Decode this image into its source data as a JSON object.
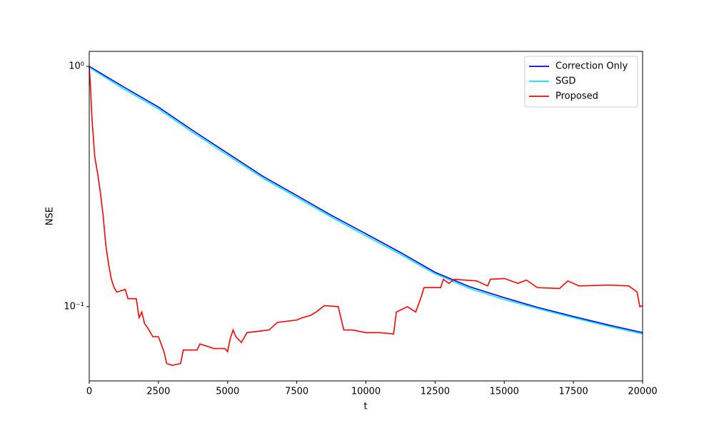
{
  "chart_data": {
    "type": "line",
    "x_label": "t",
    "y_label": "NSE",
    "xlim": [
      0,
      20000
    ],
    "xticks": [
      0,
      2500,
      5000,
      7500,
      10000,
      12500,
      15000,
      17500,
      20000
    ],
    "ylim": [
      0.0491,
      1.154
    ],
    "yscale": "log",
    "yticks": [
      {
        "value": 0.1,
        "label": "10⁻¹"
      },
      {
        "value": 1,
        "label": "10⁰"
      }
    ],
    "legend": "upper right",
    "series": [
      {
        "name": "Correction Only",
        "color": "#0000ff",
        "x": [
          0,
          1250,
          2500,
          3750,
          5000,
          6250,
          7500,
          8750,
          10000,
          11250,
          12500,
          13750,
          15000,
          16250,
          17500,
          18750,
          20000
        ],
        "values": [
          1.0,
          0.82,
          0.677,
          0.54,
          0.435,
          0.35,
          0.29,
          0.24,
          0.201,
          0.168,
          0.139,
          0.121,
          0.109,
          0.099,
          0.091,
          0.084,
          0.078
        ]
      },
      {
        "name": "SGD",
        "color": "#00e5ee",
        "x": [
          0,
          1250,
          2500,
          3750,
          5000,
          6250,
          7500,
          8750,
          10000,
          11250,
          12500,
          13750,
          15000,
          16250,
          17500,
          18750,
          20000
        ],
        "values": [
          0.99,
          0.805,
          0.665,
          0.53,
          0.427,
          0.344,
          0.285,
          0.236,
          0.197,
          0.165,
          0.137,
          0.119,
          0.107,
          0.098,
          0.09,
          0.083,
          0.077
        ]
      },
      {
        "name": "Proposed",
        "color": "#ff0000",
        "x": [
          0,
          50,
          100,
          200,
          300,
          400,
          500,
          600,
          700,
          800,
          900,
          1000,
          1300,
          1400,
          1700,
          1800,
          1900,
          2000,
          2100,
          2300,
          2500,
          2700,
          2800,
          3000,
          3300,
          3400,
          3900,
          4000,
          4500,
          4900,
          5000,
          5100,
          5200,
          5300,
          5500,
          5700,
          6500,
          6800,
          7500,
          7700,
          8000,
          8200,
          8500,
          9000,
          9200,
          9500,
          10000,
          10500,
          11000,
          11100,
          11500,
          11800,
          12000,
          12100,
          12700,
          12800,
          13000,
          13200,
          14000,
          14400,
          14500,
          15000,
          15500,
          15800,
          16200,
          17000,
          17300,
          17700,
          18800,
          19500,
          19800,
          19900,
          20000
        ],
        "values": [
          1.0,
          0.8,
          0.6,
          0.42,
          0.36,
          0.3,
          0.24,
          0.18,
          0.15,
          0.13,
          0.12,
          0.115,
          0.118,
          0.108,
          0.108,
          0.09,
          0.095,
          0.085,
          0.082,
          0.075,
          0.075,
          0.065,
          0.058,
          0.057,
          0.058,
          0.066,
          0.066,
          0.07,
          0.067,
          0.067,
          0.065,
          0.074,
          0.08,
          0.075,
          0.071,
          0.078,
          0.08,
          0.086,
          0.088,
          0.09,
          0.092,
          0.095,
          0.101,
          0.1,
          0.08,
          0.08,
          0.078,
          0.078,
          0.077,
          0.095,
          0.1,
          0.095,
          0.11,
          0.12,
          0.12,
          0.13,
          0.125,
          0.13,
          0.128,
          0.122,
          0.13,
          0.131,
          0.125,
          0.129,
          0.12,
          0.119,
          0.128,
          0.122,
          0.123,
          0.122,
          0.115,
          0.1,
          0.101
        ]
      }
    ]
  }
}
